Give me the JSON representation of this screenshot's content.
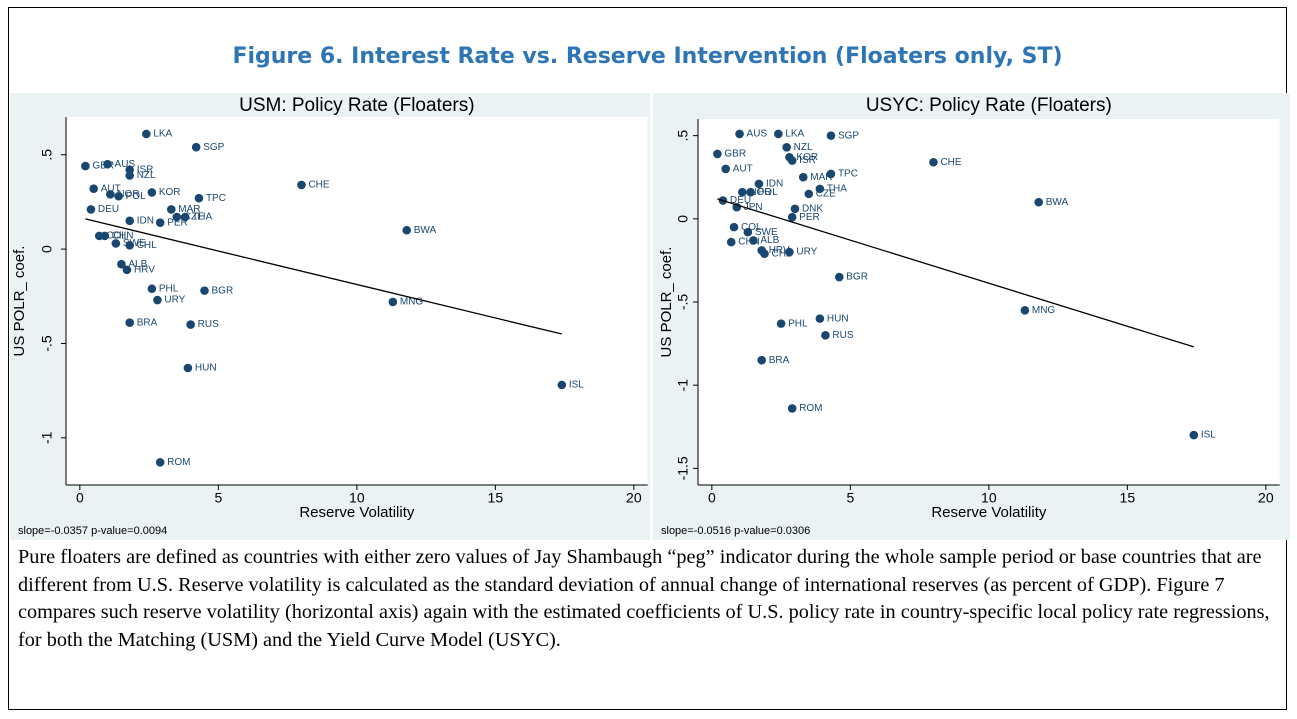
{
  "figure_title": "Figure 6. Interest Rate vs. Reserve Intervention (Floaters only, ST)",
  "caption": "Pure floaters are defined as countries with either zero values of Jay Shambaugh “peg” indicator during the whole sample period or base countries that are different from U.S. Reserve volatility is calculated as the standard deviation of annual change of international reserves (as percent of GDP). Figure 7 compares such reserve volatility (horizontal axis) again with the estimated coefficients of U.S. policy rate in country-specific local policy rate regressions, for both the Matching (USM) and the Yield Curve Model (USYC).",
  "chart_data": [
    {
      "type": "scatter",
      "title": "USM: Policy Rate (Floaters)",
      "x_label": "Reserve Volatility",
      "y_label": "US POLR_ coef.",
      "note": "slope=-0.0357 p-value=0.0094",
      "color": "#1a476f",
      "grid": false,
      "xlim": [
        -0.5,
        20.5
      ],
      "xticks": [
        0,
        5,
        10,
        15,
        20
      ],
      "ylim": [
        -1.25,
        0.7
      ],
      "yticks": [
        {
          "value": 0.5,
          "label": ".5"
        },
        0,
        {
          "value": -0.5,
          "label": "-.5"
        },
        -1
      ],
      "labels": [
        "LKA",
        "SGP",
        "GBR",
        "AUS",
        "ISR",
        "NZL",
        "CHE",
        "AUT",
        "NOR",
        "POL",
        "KOR",
        "TPC",
        "DEU",
        "MAR",
        "CZE",
        "THA",
        "PER",
        "IDN",
        "BWA",
        "COL",
        "CHN",
        "SWE",
        "CHL",
        "ALB",
        "HRV",
        "PHL",
        "BGR",
        "URY",
        "MNG",
        "BRA",
        "RUS",
        "HUN",
        "ISL",
        "ROM"
      ],
      "x": [
        2.4,
        4.2,
        0.2,
        1.0,
        1.8,
        1.8,
        8.0,
        0.5,
        1.1,
        1.4,
        2.6,
        4.3,
        0.4,
        3.3,
        3.5,
        3.8,
        2.9,
        1.8,
        11.8,
        0.7,
        0.9,
        1.3,
        1.8,
        1.5,
        1.7,
        2.6,
        4.5,
        2.8,
        11.3,
        1.8,
        4.0,
        3.9,
        17.4,
        2.9
      ],
      "values": [
        0.61,
        0.54,
        0.44,
        0.45,
        0.42,
        0.39,
        0.34,
        0.32,
        0.29,
        0.28,
        0.3,
        0.27,
        0.21,
        0.21,
        0.17,
        0.17,
        0.14,
        0.15,
        0.1,
        0.07,
        0.07,
        0.03,
        0.02,
        -0.08,
        -0.11,
        -0.21,
        -0.22,
        -0.27,
        -0.28,
        -0.39,
        -0.4,
        -0.63,
        -0.72,
        -1.13
      ],
      "fit_line": {
        "x": [
          0.2,
          17.4
        ],
        "y": [
          0.16,
          -0.45
        ]
      }
    },
    {
      "type": "scatter",
      "title": "USYC: Policy Rate (Floaters)",
      "x_label": "Reserve Volatility",
      "y_label": "US POLR_ coef.",
      "note": "slope=-0.0516 p-value=0.0306",
      "color": "#1a476f",
      "grid": false,
      "xlim": [
        -0.5,
        20.5
      ],
      "xticks": [
        0,
        5,
        10,
        15,
        20
      ],
      "ylim": [
        -1.6,
        0.6
      ],
      "yticks": [
        {
          "value": 0.5,
          "label": ".5"
        },
        0,
        {
          "value": -0.5,
          "label": "-.5"
        },
        -1,
        {
          "value": -1.5,
          "label": "-1.5"
        }
      ],
      "labels": [
        "AUS",
        "LKA",
        "SGP",
        "NZL",
        "GBR",
        "KOR",
        "ISR",
        "CHE",
        "AUT",
        "TPC",
        "MAR",
        "IDN",
        "THA",
        "NOR",
        "POL",
        "CZE",
        "DEU",
        "BWA",
        "JPN",
        "DNK",
        "PER",
        "COL",
        "SWE",
        "ALB",
        "CHN",
        "HRV",
        "CHL",
        "URY",
        "BGR",
        "MNG",
        "HUN",
        "PHL",
        "RUS",
        "BRA",
        "ROM",
        "ISL"
      ],
      "x": [
        1.0,
        2.4,
        4.3,
        2.7,
        0.2,
        2.8,
        2.9,
        8.0,
        0.5,
        4.3,
        3.3,
        1.7,
        3.9,
        1.1,
        1.4,
        3.5,
        0.4,
        11.8,
        0.9,
        3.0,
        2.9,
        0.8,
        1.3,
        1.5,
        0.7,
        1.8,
        1.9,
        2.8,
        4.6,
        11.3,
        3.9,
        2.5,
        4.1,
        1.8,
        2.9,
        17.4
      ],
      "values": [
        0.51,
        0.51,
        0.5,
        0.43,
        0.39,
        0.37,
        0.35,
        0.34,
        0.3,
        0.27,
        0.25,
        0.21,
        0.18,
        0.16,
        0.16,
        0.15,
        0.11,
        0.1,
        0.07,
        0.06,
        0.01,
        -0.05,
        -0.08,
        -0.13,
        -0.14,
        -0.19,
        -0.21,
        -0.2,
        -0.35,
        -0.55,
        -0.6,
        -0.63,
        -0.7,
        -0.85,
        -1.14,
        -1.3
      ],
      "fit_line": {
        "x": [
          0.2,
          17.4
        ],
        "y": [
          0.12,
          -0.77
        ]
      }
    }
  ]
}
